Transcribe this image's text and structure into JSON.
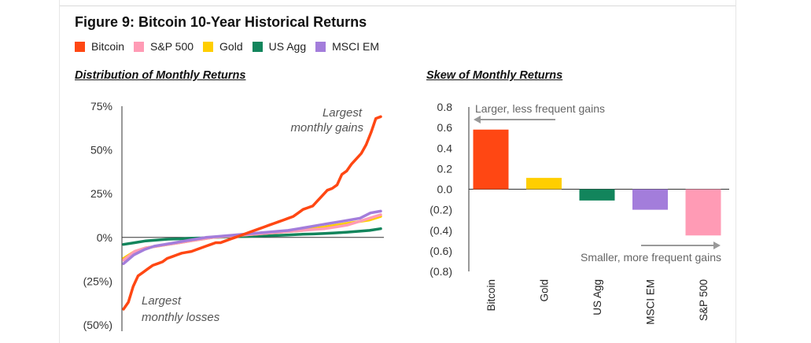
{
  "figure": {
    "title": "Figure 9: Bitcoin 10-Year Historical Returns"
  },
  "legend": [
    {
      "label": "Bitcoin",
      "color": "#ff4713"
    },
    {
      "label": "S&P 500",
      "color": "#ff9bb5"
    },
    {
      "label": "Gold",
      "color": "#ffce00"
    },
    {
      "label": "US Agg",
      "color": "#12855c"
    },
    {
      "label": "MSCI EM",
      "color": "#a37ddb"
    }
  ],
  "chart_data": [
    {
      "type": "line",
      "title": "Distribution of Monthly Returns",
      "ylim": [
        -50,
        75
      ],
      "yticks": [
        {
          "value": 75,
          "label": "75%"
        },
        {
          "value": 50,
          "label": "50%"
        },
        {
          "value": 25,
          "label": "25%"
        },
        {
          "value": 0,
          "label": "0%"
        },
        {
          "value": -25,
          "label": "(25%)"
        },
        {
          "value": -50,
          "label": "(50%)"
        }
      ],
      "annotations": [
        {
          "text": "Largest monthly gains"
        },
        {
          "text": "Largest monthly losses"
        }
      ],
      "x_note": "months sorted from worst to best (approx. 120)",
      "series": [
        {
          "name": "Bitcoin",
          "color": "#ff4713",
          "values": [
            -41,
            -37,
            -28,
            -22,
            -20,
            -18,
            -16,
            -15,
            -14,
            -12,
            -11,
            -10,
            -9,
            -8.5,
            -8,
            -7,
            -6,
            -5,
            -4,
            -3,
            -3,
            -2,
            -1,
            0,
            1,
            2,
            3,
            4,
            5,
            6,
            7,
            8,
            9,
            10,
            11,
            12,
            14,
            16,
            17,
            18,
            21,
            24,
            27,
            28,
            30,
            36,
            38,
            42,
            45,
            48,
            53,
            60,
            68,
            69
          ]
        },
        {
          "name": "S&P 500",
          "color": "#ff9bb5",
          "values": [
            -13,
            -8,
            -6,
            -5,
            -4,
            -3,
            -2,
            -1,
            0,
            0.5,
            1,
            1.5,
            2,
            2.5,
            3,
            3.5,
            4,
            4.5,
            5,
            6,
            7,
            9,
            11,
            13
          ]
        },
        {
          "name": "Gold",
          "color": "#ffce00",
          "values": [
            -12,
            -8,
            -6,
            -5,
            -4,
            -3,
            -2,
            -1,
            0,
            0.5,
            1,
            1.5,
            2,
            2.5,
            3,
            3.5,
            4,
            5,
            6,
            7,
            8,
            9,
            10,
            12
          ]
        },
        {
          "name": "US Agg",
          "color": "#12855c",
          "values": [
            -4,
            -3,
            -2,
            -1.5,
            -1,
            -0.8,
            -0.5,
            -0.3,
            0,
            0.2,
            0.4,
            0.6,
            0.8,
            1,
            1.2,
            1.5,
            1.8,
            2,
            2.3,
            2.6,
            3,
            3.5,
            4,
            5
          ]
        },
        {
          "name": "MSCI EM",
          "color": "#a37ddb",
          "values": [
            -15,
            -10,
            -7,
            -5,
            -4,
            -3,
            -2,
            -1,
            0,
            0.5,
            1,
            1.5,
            2,
            2.5,
            3,
            3.5,
            4,
            5,
            6,
            7,
            8,
            9,
            10,
            11,
            14,
            15
          ]
        }
      ]
    },
    {
      "type": "bar",
      "title": "Skew of Monthly Returns",
      "ylim": [
        -0.8,
        0.8
      ],
      "yticks": [
        {
          "value": 0.8,
          "label": "0.8"
        },
        {
          "value": 0.6,
          "label": "0.6"
        },
        {
          "value": 0.4,
          "label": "0.4"
        },
        {
          "value": 0.2,
          "label": "0.2"
        },
        {
          "value": 0.0,
          "label": "0.0"
        },
        {
          "value": -0.2,
          "label": "(0.2)"
        },
        {
          "value": -0.4,
          "label": "(0.4)"
        },
        {
          "value": -0.6,
          "label": "(0.6)"
        },
        {
          "value": -0.8,
          "label": "(0.8)"
        }
      ],
      "categories": [
        "Bitcoin",
        "Gold",
        "US Agg",
        "MSCI EM",
        "S&P 500"
      ],
      "values": [
        0.58,
        0.11,
        -0.11,
        -0.2,
        -0.45
      ],
      "colors": [
        "#ff4713",
        "#ffce00",
        "#12855c",
        "#a37ddb",
        "#ff9bb5"
      ],
      "annotations": [
        {
          "text": "Larger, less frequent gains",
          "arrow": "left"
        },
        {
          "text": "Smaller, more frequent gains",
          "arrow": "right"
        }
      ]
    }
  ]
}
